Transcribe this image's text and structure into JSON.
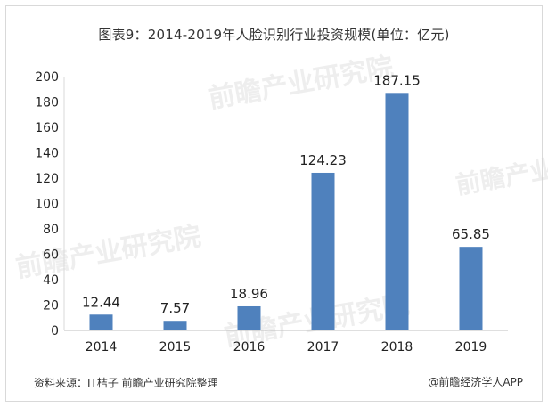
{
  "chart_data": {
    "type": "bar",
    "title": "图表9：2014-2019年人脸识别行业投资规模(单位：亿元)",
    "categories": [
      "2014",
      "2015",
      "2016",
      "2017",
      "2018",
      "2019"
    ],
    "values": [
      12.44,
      7.57,
      18.96,
      124.23,
      187.15,
      65.85
    ],
    "data_labels": [
      "12.44",
      "7.57",
      "18.96",
      "124.23",
      "187.15",
      "65.85"
    ],
    "yticks": [
      "0",
      "20",
      "40",
      "60",
      "80",
      "100",
      "120",
      "140",
      "160",
      "180",
      "200"
    ],
    "ylim": [
      0,
      200
    ],
    "xlabel": "",
    "ylabel": "",
    "grid": false,
    "bar_color": "#4f81bd"
  },
  "source_note": "资料来源：IT桔子 前瞻产业研究院整理",
  "brand_note": "@前瞻经济学人APP",
  "watermark_text": "前瞻产业研究院"
}
